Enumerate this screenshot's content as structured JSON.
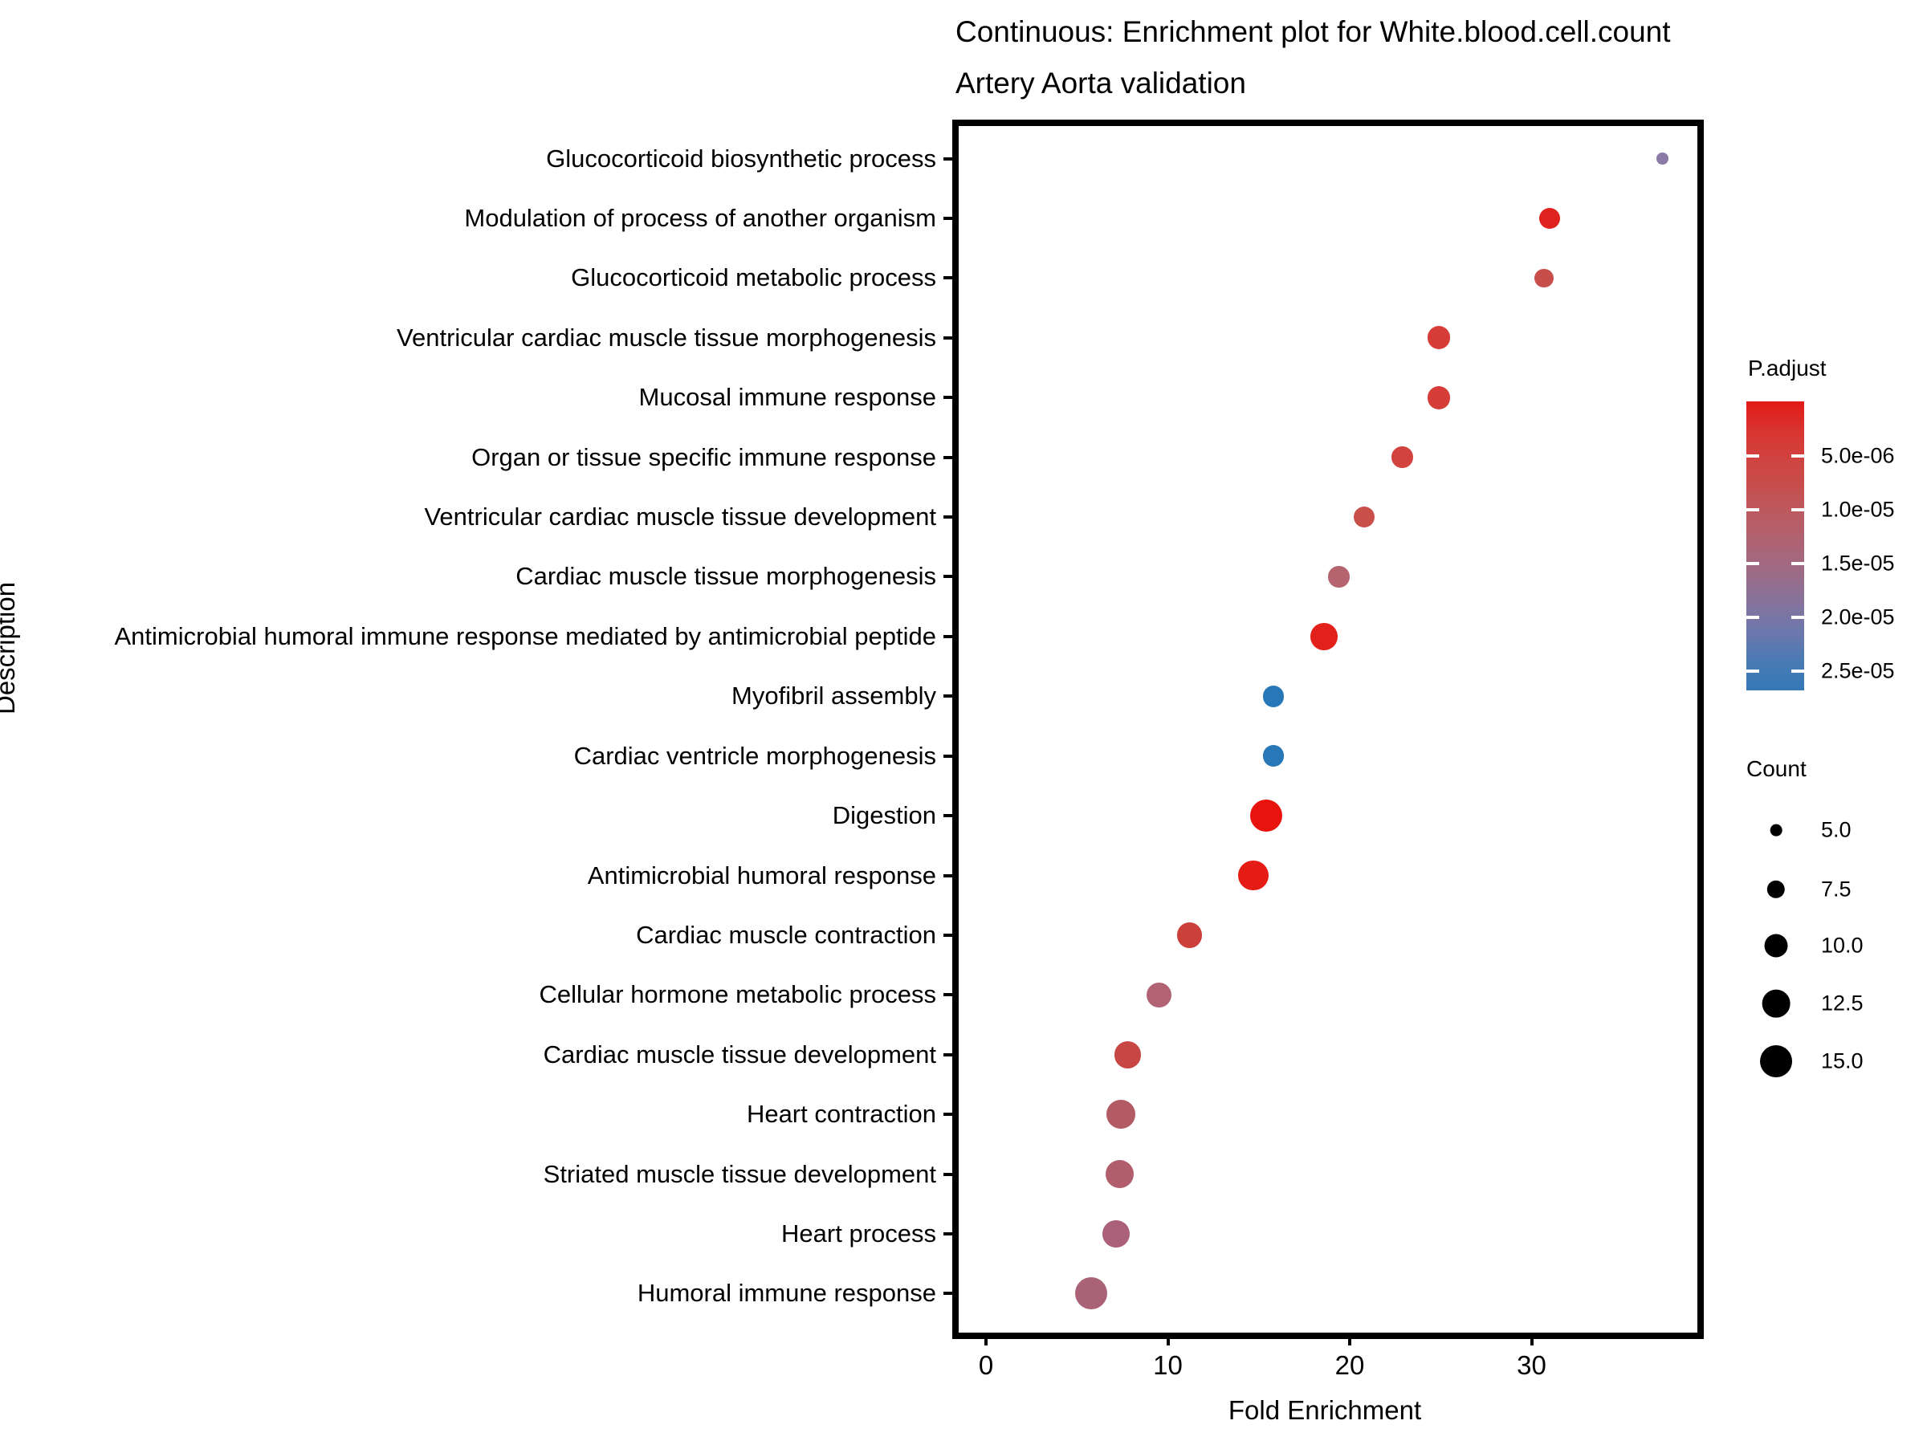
{
  "title": "Continuous: Enrichment plot for White.blood.cell.count",
  "subtitle": "Artery Aorta validation",
  "axes": {
    "x_label": "Fold Enrichment",
    "y_label": "Description",
    "x_ticks": [
      "0",
      "10",
      "20",
      "30"
    ]
  },
  "legend": {
    "color": {
      "title": "P.adjust",
      "tick_labels": [
        "5.0e-06",
        "1.0e-05",
        "1.5e-05",
        "2.0e-05",
        "2.5e-05"
      ],
      "tick_positions": [
        0.189,
        0.375,
        0.561,
        0.747,
        0.933
      ],
      "gradient": [
        "#E21A16",
        "#D93430",
        "#D04341",
        "#C64F4D",
        "#BA5B63",
        "#AC6475",
        "#9B6C88",
        "#86739D",
        "#6B78AD",
        "#4A7AB4",
        "#3379B6"
      ]
    },
    "size": {
      "title": "Count",
      "items": [
        {
          "label": "5.0",
          "value": 5.0
        },
        {
          "label": "7.5",
          "value": 7.5
        },
        {
          "label": "10.0",
          "value": 10.0
        },
        {
          "label": "12.5",
          "value": 12.5
        },
        {
          "label": "15.0",
          "value": 15.0
        }
      ]
    }
  },
  "chart_data": {
    "type": "scatter",
    "variant": "dotplot-enrichment",
    "title": "Continuous: Enrichment plot for White.blood.cell.count",
    "subtitle": "Artery Aorta validation",
    "xlabel": "Fold Enrichment",
    "ylabel": "Description",
    "xlim": [
      -1.7,
      38.9
    ],
    "x_ticks": [
      0,
      10,
      20,
      30
    ],
    "grid": false,
    "legend_position": "right",
    "color_scale": {
      "label": "P.adjust",
      "low_color": "#E21A16",
      "high_color": "#3379B6",
      "ticks": [
        5e-06,
        1e-05,
        1.5e-05,
        2e-05,
        2.5e-05
      ]
    },
    "size_scale": {
      "label": "Count",
      "ticks": [
        5.0,
        7.5,
        10.0,
        12.5,
        15.0
      ]
    },
    "points": [
      {
        "label": "Glucocorticoid biosynthetic process",
        "fold_enrichment": 37.2,
        "count": 5,
        "p_adjust": 1.9e-05,
        "color": "#8A7AA5"
      },
      {
        "label": "Modulation of process of another organism",
        "fold_enrichment": 31.0,
        "count": 9,
        "p_adjust": 2e-06,
        "color": "#DF231F"
      },
      {
        "label": "Glucocorticoid metabolic process",
        "fold_enrichment": 30.7,
        "count": 8,
        "p_adjust": 7e-06,
        "color": "#C74E4B"
      },
      {
        "label": "Ventricular cardiac muscle tissue morphogenesis",
        "fold_enrichment": 24.9,
        "count": 10,
        "p_adjust": 4e-06,
        "color": "#D63D38"
      },
      {
        "label": "Mucosal immune response",
        "fold_enrichment": 24.9,
        "count": 10,
        "p_adjust": 4e-06,
        "color": "#D63D38"
      },
      {
        "label": "Organ or tissue specific immune response",
        "fold_enrichment": 22.9,
        "count": 9,
        "p_adjust": 4.5e-06,
        "color": "#D2423E"
      },
      {
        "label": "Ventricular cardiac muscle tissue development",
        "fold_enrichment": 20.8,
        "count": 9,
        "p_adjust": 7.5e-06,
        "color": "#C94F4B"
      },
      {
        "label": "Cardiac muscle tissue morphogenesis",
        "fold_enrichment": 19.4,
        "count": 9,
        "p_adjust": 1.2e-05,
        "color": "#B4636F"
      },
      {
        "label": "Antimicrobial humoral immune response mediated by antimicrobial peptide",
        "fold_enrichment": 18.6,
        "count": 12,
        "p_adjust": 1.5e-06,
        "color": "#E2201C"
      },
      {
        "label": "Myofibril assembly",
        "fold_enrichment": 15.8,
        "count": 9,
        "p_adjust": 2.5e-05,
        "color": "#2878B8"
      },
      {
        "label": "Cardiac ventricle morphogenesis",
        "fold_enrichment": 15.8,
        "count": 9,
        "p_adjust": 2.5e-05,
        "color": "#2878B8"
      },
      {
        "label": "Digestion",
        "fold_enrichment": 15.4,
        "count": 15,
        "p_adjust": 7e-07,
        "color": "#E8130D"
      },
      {
        "label": "Antimicrobial humoral response",
        "fold_enrichment": 14.7,
        "count": 14,
        "p_adjust": 1.2e-06,
        "color": "#E51B15"
      },
      {
        "label": "Cardiac muscle contraction",
        "fold_enrichment": 11.2,
        "count": 11,
        "p_adjust": 6e-06,
        "color": "#CC403C"
      },
      {
        "label": "Cellular hormone metabolic process",
        "fold_enrichment": 9.5,
        "count": 11,
        "p_adjust": 1.2e-05,
        "color": "#B16273"
      },
      {
        "label": "Cardiac muscle tissue development",
        "fold_enrichment": 7.8,
        "count": 12,
        "p_adjust": 7e-06,
        "color": "#C64743"
      },
      {
        "label": "Heart contraction",
        "fold_enrichment": 7.4,
        "count": 13,
        "p_adjust": 1.25e-05,
        "color": "#B45A65"
      },
      {
        "label": "Striated muscle tissue development",
        "fold_enrichment": 7.35,
        "count": 13,
        "p_adjust": 1.3e-05,
        "color": "#B25D6B"
      },
      {
        "label": "Heart process",
        "fold_enrichment": 7.15,
        "count": 12,
        "p_adjust": 1.5e-05,
        "color": "#A96078"
      },
      {
        "label": "Humoral immune response",
        "fold_enrichment": 5.8,
        "count": 15,
        "p_adjust": 1.45e-05,
        "color": "#AA6277"
      }
    ]
  }
}
